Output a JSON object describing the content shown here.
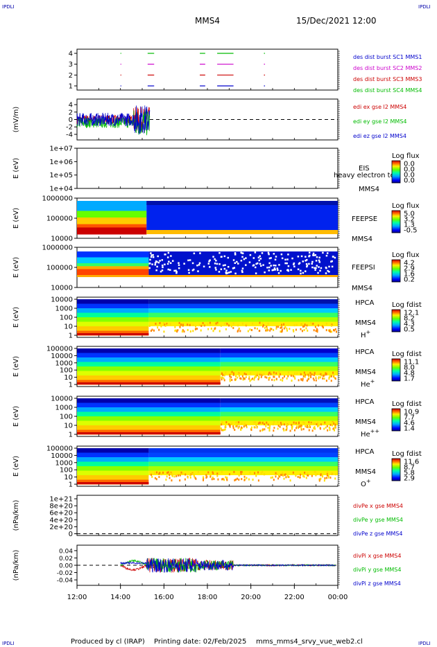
{
  "header": {
    "corner_tl": "IPDLI",
    "corner_tr": "IPDLI",
    "corner_bl": "IPDLI",
    "corner_br": "IPDLI",
    "spacecraft": "MMS4",
    "datetime": "15/Dec/2021 12:00"
  },
  "footer": {
    "produced_by": "Produced by cl (IRAP)",
    "printing_date": "Printing date: 02/Feb/2025",
    "filename": "mms_mms4_srvy_vue_web2.cl"
  },
  "chart_data": [
    {
      "type": "scatter",
      "panel": "burst",
      "x_ticks": [
        "12:00",
        "14:00",
        "16:00",
        "18:00",
        "20:00",
        "22:00",
        "00:00"
      ],
      "y_ticks": [
        "1",
        "2",
        "3",
        "4"
      ],
      "ylim": [
        0.5,
        4.5
      ],
      "legend": [
        {
          "name": "des dist burst SC1 MMS1",
          "color": "#0000cc"
        },
        {
          "name": "des dist burst SC2 MMS2",
          "color": "#cc00cc"
        },
        {
          "name": "des dist burst SC3 MMS3",
          "color": "#cc0000"
        },
        {
          "name": "des dist burst SC4 MMS4",
          "color": "#00bb00"
        }
      ],
      "intervals": [
        [
          14.0,
          14.03
        ],
        [
          15.25,
          15.55
        ],
        [
          17.65,
          17.9
        ],
        [
          18.45,
          19.2
        ],
        [
          20.6,
          20.65
        ]
      ]
    },
    {
      "type": "line",
      "panel": "edi",
      "ylabel": "(mV/m)",
      "y_ticks": [
        "-4",
        "-2",
        "0",
        "2",
        "4"
      ],
      "ylim": [
        -5.5,
        5.5
      ],
      "data_end_hour": 15.35,
      "legend": [
        {
          "name": "edi ex gse l2 MMS4",
          "color": "#cc0000"
        },
        {
          "name": "edi ey gse l2 MMS4",
          "color": "#00bb00"
        },
        {
          "name": "edi ez gse l2 MMS4",
          "color": "#0000cc"
        }
      ]
    },
    {
      "type": "heatmap",
      "panel": "eis",
      "ylabel": "E (eV)",
      "y_ticks": [
        "1e+04",
        "1e+05",
        "1e+06",
        "1e+07"
      ],
      "instrument": "EIS",
      "spacecraft": "MMS4",
      "overlay_text": "heavy electron to",
      "colorbar_title": "Log flux",
      "colorbar_ticks": [
        "0.0",
        "0.0",
        "0.0",
        "0.0"
      ]
    },
    {
      "type": "heatmap",
      "panel": "feeps_e",
      "ylabel": "E (eV)",
      "y_ticks": [
        "10000",
        "100000",
        "1000000"
      ],
      "instrument": "FEEPSE",
      "spacecraft": "MMS4",
      "colorbar_title": "Log flux",
      "colorbar_ticks": [
        "5.0",
        "3.2",
        "1.3",
        "-0.5"
      ]
    },
    {
      "type": "heatmap",
      "panel": "feeps_i",
      "ylabel": "E (eV)",
      "y_ticks": [
        "10000",
        "100000",
        "1000000"
      ],
      "instrument": "FEEPSI",
      "spacecraft": "MMS4",
      "colorbar_title": "Log flux",
      "colorbar_ticks": [
        "4.2",
        "2.9",
        "1.6",
        "0.2"
      ]
    },
    {
      "type": "heatmap",
      "panel": "hpca_h",
      "ylabel": "E (eV)",
      "y_ticks": [
        "1",
        "10",
        "100",
        "1000",
        "10000"
      ],
      "instrument": "HPCA",
      "spacecraft": "MMS4",
      "species": "H",
      "species_charge": "+",
      "colorbar_title": "Log fdist",
      "colorbar_ticks": [
        "12.1",
        "8.2",
        "4.3",
        "0.5"
      ]
    },
    {
      "type": "heatmap",
      "panel": "hpca_he",
      "ylabel": "E (eV)",
      "y_ticks": [
        "1",
        "10",
        "100",
        "1000",
        "10000",
        "100000"
      ],
      "instrument": "HPCA",
      "spacecraft": "MMS4",
      "species": "He",
      "species_charge": "+",
      "colorbar_title": "Log fdist",
      "colorbar_ticks": [
        "11.1",
        "8.0",
        "4.8",
        "1.7"
      ]
    },
    {
      "type": "heatmap",
      "panel": "hpca_hepp",
      "ylabel": "E (eV)",
      "y_ticks": [
        "1",
        "10",
        "100",
        "1000",
        "10000"
      ],
      "instrument": "HPCA",
      "spacecraft": "MMS4",
      "species": "He",
      "species_charge": "++",
      "colorbar_title": "Log fdist",
      "colorbar_ticks": [
        "10.9",
        "7.7",
        "4.6",
        "1.4"
      ]
    },
    {
      "type": "heatmap",
      "panel": "hpca_o",
      "ylabel": "E (eV)",
      "y_ticks": [
        "1",
        "10",
        "100",
        "1000",
        "10000",
        "100000"
      ],
      "instrument": "HPCA",
      "spacecraft": "MMS4",
      "species": "O",
      "species_charge": "+",
      "colorbar_title": "Log fdist",
      "colorbar_ticks": [
        "11.6",
        "8.7",
        "5.8",
        "2.9"
      ]
    },
    {
      "type": "line",
      "panel": "divpe",
      "ylabel": "(nPa/km)",
      "y_ticks": [
        "0",
        "2e+20",
        "4e+20",
        "6e+20",
        "8e+20",
        "1e+21"
      ],
      "ylim": [
        -5e+19,
        1.1e+21
      ],
      "legend": [
        {
          "name": "divPe x gse MMS4",
          "color": "#cc0000"
        },
        {
          "name": "divPe y gse MMS4",
          "color": "#00bb00"
        },
        {
          "name": "divPe z gse MMS4",
          "color": "#0000cc"
        }
      ]
    },
    {
      "type": "line",
      "panel": "divpi",
      "ylabel": "(nPa/km)",
      "y_ticks": [
        "-0.04",
        "-0.02",
        "0.00",
        "0.02",
        "0.04"
      ],
      "ylim": [
        -0.055,
        0.055
      ],
      "x_ticks": [
        "12:00",
        "14:00",
        "16:00",
        "18:00",
        "20:00",
        "22:00",
        "00:00"
      ],
      "xlim_hours": [
        12,
        24
      ],
      "legend": [
        {
          "name": "divPi x gse MMS4",
          "color": "#cc0000"
        },
        {
          "name": "divPi y gse MMS4",
          "color": "#00bb00"
        },
        {
          "name": "divPi z gse MMS4",
          "color": "#0000cc"
        }
      ]
    }
  ]
}
